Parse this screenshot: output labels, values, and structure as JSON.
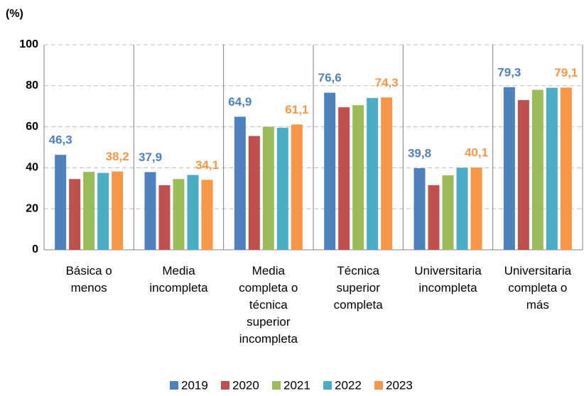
{
  "chart_data": {
    "type": "bar",
    "y_axis_label": "(%)",
    "categories": [
      "Básica o menos",
      "Media incompleta",
      "Media completa o técnica superior incompleta",
      "Técnica superior completa",
      "Universitaria incompleta",
      "Universitaria completa o más"
    ],
    "series": [
      {
        "name": "2019",
        "color": "#4f81bd",
        "values": [
          46.3,
          37.9,
          64.9,
          76.6,
          39.8,
          79.3
        ],
        "value_labels": [
          "46,3",
          "37,9",
          "64,9",
          "76,6",
          "39,8",
          "79,3"
        ]
      },
      {
        "name": "2020",
        "color": "#c0504d",
        "values": [
          34.5,
          31.5,
          55.5,
          69.5,
          31.5,
          73
        ]
      },
      {
        "name": "2021",
        "color": "#9bbb59",
        "values": [
          38,
          34.5,
          60,
          70.5,
          36.3,
          78
        ]
      },
      {
        "name": "2022",
        "color": "#4bacc6",
        "values": [
          37.5,
          36.5,
          59.5,
          74,
          40,
          79
        ]
      },
      {
        "name": "2023",
        "color": "#f79646",
        "values": [
          38.2,
          34.1,
          61.1,
          74.3,
          40.1,
          79.1
        ],
        "value_labels": [
          "38,2",
          "34,1",
          "61,1",
          "74,3",
          "40,1",
          "79,1"
        ]
      }
    ],
    "ylim": [
      0,
      100
    ],
    "yticks": [
      0,
      20,
      40,
      60,
      80,
      100
    ],
    "grid": true,
    "legend": "bottom"
  }
}
